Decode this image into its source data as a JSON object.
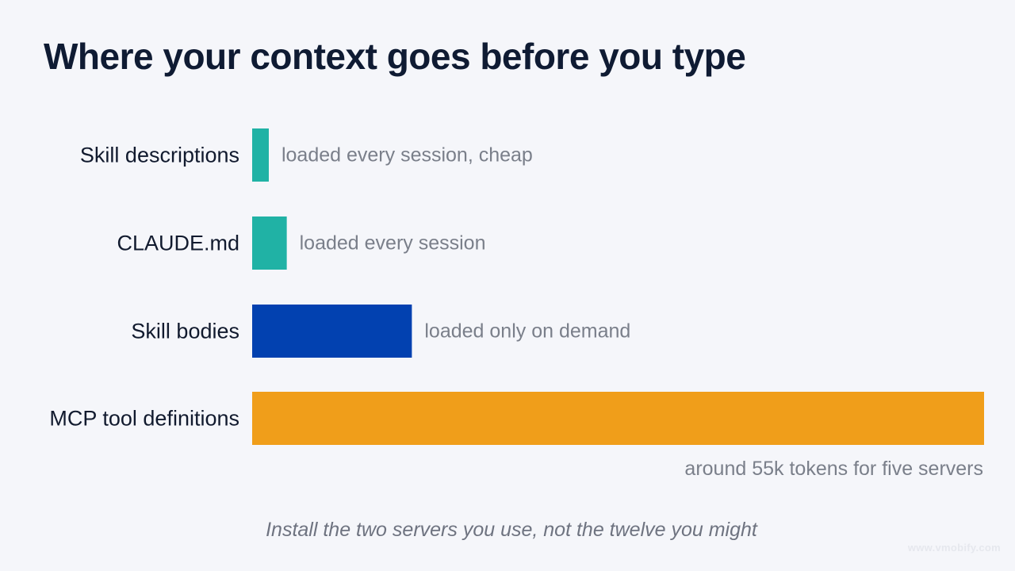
{
  "watermark": "www.vmobify.com",
  "chart_data": {
    "type": "bar",
    "orientation": "horizontal",
    "title": "Where your context goes before you type",
    "subtitle": "Install the two servers you use, not the twelve you might",
    "xlabel": "",
    "ylabel": "",
    "grid": false,
    "legend": "none",
    "categories": [
      "Skill descriptions",
      "CLAUDE.md",
      "Skill bodies",
      "MCP tool definitions"
    ],
    "values": [
      1.25,
      2.6,
      12.0,
      55
    ],
    "annotations": [
      "loaded every session, cheap",
      "loaded every session",
      "loaded only on demand",
      "around 55k tokens for five servers"
    ],
    "colors": [
      "#20b2a5",
      "#20b2a5",
      "#0241b0",
      "#f09e1a"
    ],
    "label_color": "#111a2e",
    "annotation_color": "#7a7f8a"
  }
}
